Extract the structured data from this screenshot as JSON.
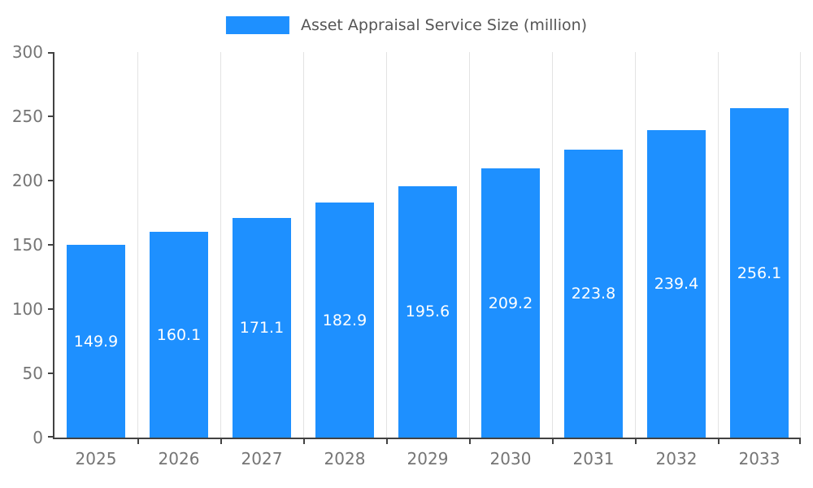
{
  "legend": {
    "label": "Asset Appraisal Service Size (million)"
  },
  "chart_data": {
    "type": "bar",
    "title": "Asset Appraisal Service Size (million)",
    "categories": [
      "2025",
      "2026",
      "2027",
      "2028",
      "2029",
      "2030",
      "2031",
      "2032",
      "2033"
    ],
    "series": [
      {
        "name": "Asset Appraisal Service Size (million)",
        "values": [
          149.9,
          160.1,
          171.1,
          182.9,
          195.6,
          209.2,
          223.8,
          239.4,
          256.1
        ]
      }
    ],
    "xlabel": "",
    "ylabel": "",
    "ylim": [
      0,
      300
    ],
    "yticks": [
      0,
      50,
      100,
      150,
      200,
      250,
      300
    ],
    "grid": "vertical-only",
    "legend_position": "top-center",
    "value_labels": "inside-center-white",
    "colors": {
      "bar": "#1e90ff",
      "value_label": "#ffffff",
      "axis_line": "#424242",
      "axis_text": "#757575",
      "gridline": "#e3e3e3",
      "legend_text": "#555555",
      "background": "#ffffff"
    }
  }
}
